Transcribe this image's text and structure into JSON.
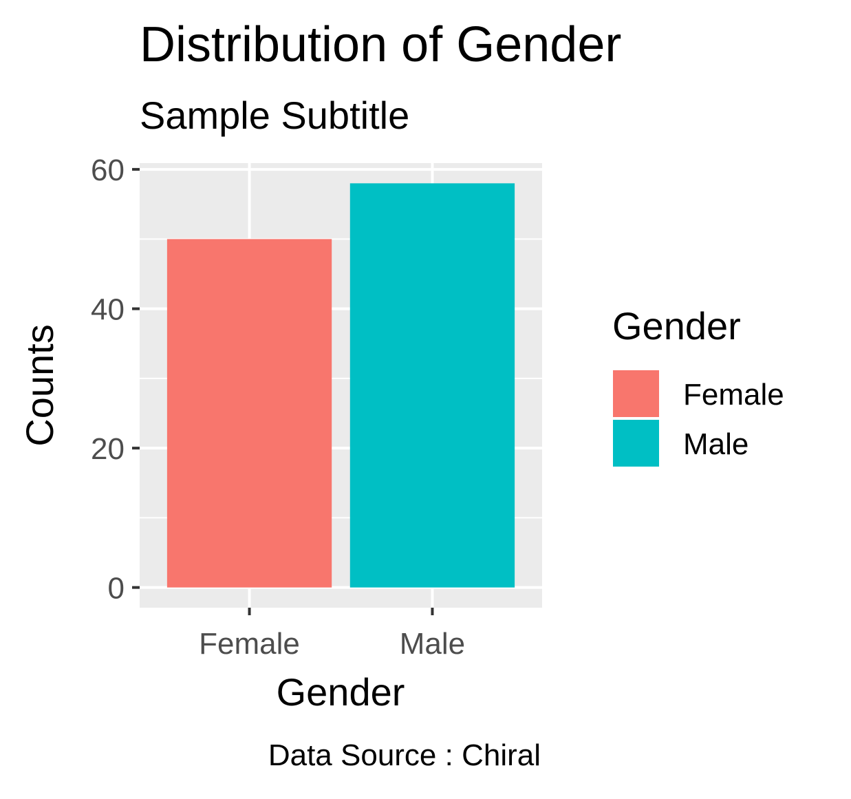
{
  "chart_data": {
    "type": "bar",
    "title": "Distribution of Gender",
    "subtitle": "Sample Subtitle",
    "caption": "Data Source : Chiral",
    "xlabel": "Gender",
    "ylabel": "Counts",
    "categories": [
      "Female",
      "Male"
    ],
    "values": [
      50,
      58
    ],
    "colors": [
      "#F8766D",
      "#00BFC4"
    ],
    "ylim": [
      -2.9,
      60.9
    ],
    "yticks": [
      0,
      20,
      40,
      60
    ],
    "y_minor_ticks": [
      10,
      30,
      50
    ],
    "panel_background": "#EBEBEB",
    "grid": true,
    "legend": {
      "title": "Gender",
      "position": "right",
      "entries": [
        "Female",
        "Male"
      ]
    }
  }
}
